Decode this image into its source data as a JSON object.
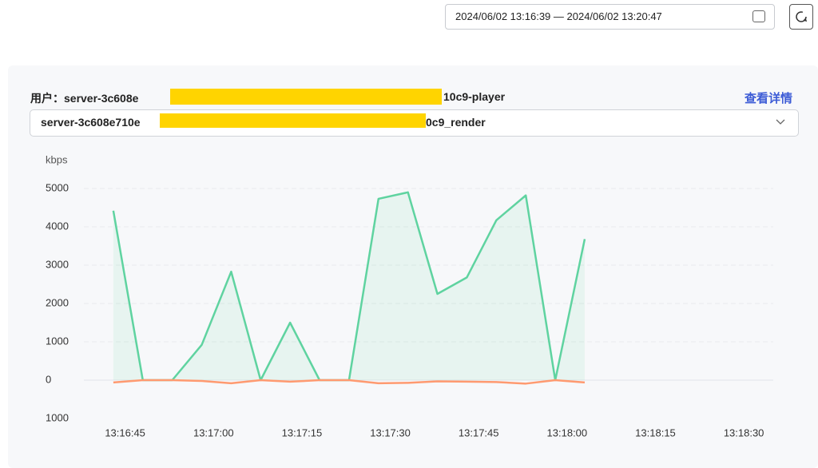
{
  "header": {
    "date_range": "2024/06/02 13:16:39 — 2024/06/02 13:20:47"
  },
  "panel": {
    "user_label_prefix": "用户：server-3c608e",
    "user_label_suffix": "10c9-player",
    "details_link": "查看详情",
    "select_prefix": "server-3c608e710e",
    "select_suffix": "0c9_render"
  },
  "chart_data": {
    "type": "line",
    "ylabel": "kbps",
    "x": [
      "13:16:43",
      "13:16:48",
      "13:16:53",
      "13:16:58",
      "13:17:03",
      "13:17:08",
      "13:17:13",
      "13:17:18",
      "13:17:23",
      "13:17:28",
      "13:17:33",
      "13:17:38",
      "13:17:43",
      "13:17:48",
      "13:17:53",
      "13:17:58",
      "13:18:03"
    ],
    "series": [
      {
        "color": "#5fd3a0",
        "area": true,
        "values": [
          4420,
          0,
          0,
          920,
          2830,
          0,
          1500,
          0,
          0,
          4730,
          4900,
          2250,
          2680,
          4170,
          4820,
          0,
          3680
        ]
      },
      {
        "color": "#ff9a70",
        "area": false,
        "values": [
          -60,
          0,
          0,
          -20,
          -80,
          0,
          -40,
          0,
          0,
          -80,
          -70,
          -30,
          -40,
          -50,
          -90,
          0,
          -60
        ]
      }
    ],
    "xlim": [
      "13:16:38",
      "13:18:35"
    ],
    "xticks": [
      "13:16:45",
      "13:17:00",
      "13:17:15",
      "13:17:30",
      "13:17:45",
      "13:18:00",
      "13:18:15",
      "13:18:30"
    ],
    "ylim": [
      -1000,
      5000
    ],
    "yticks": [
      {
        "value": -1000,
        "label": "1000"
      },
      0,
      1000,
      2000,
      3000,
      4000,
      5000
    ],
    "grid": true
  }
}
